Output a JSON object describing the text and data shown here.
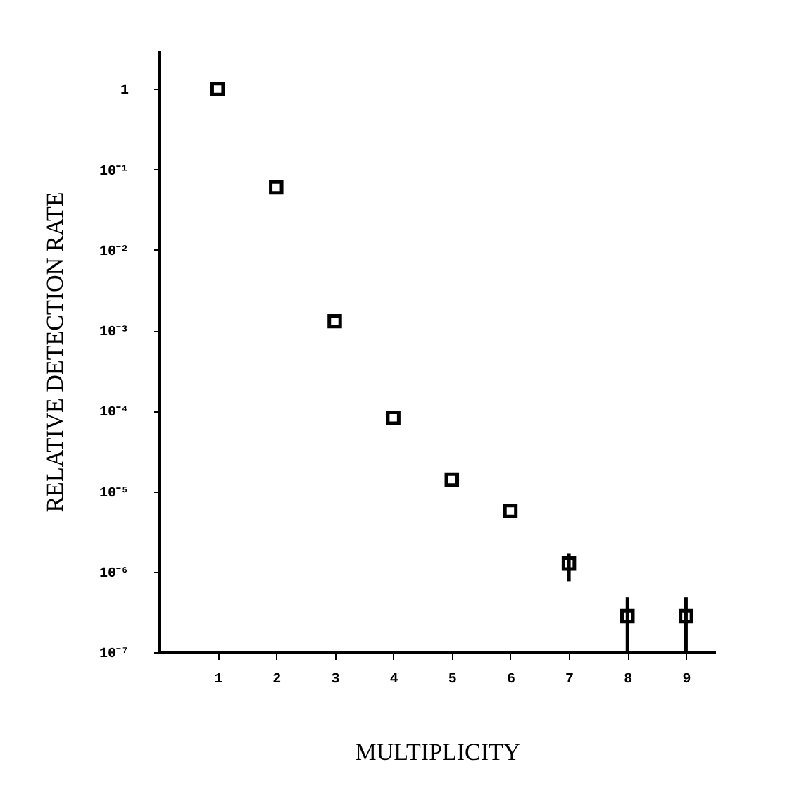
{
  "chart_data": {
    "type": "scatter",
    "xlabel": "MULTIPLICITY",
    "ylabel": "RELATIVE DETECTION RATE",
    "x": [
      1,
      2,
      3,
      4,
      5,
      6,
      7,
      8,
      9
    ],
    "series": [
      {
        "color": "#000000",
        "marker": "square",
        "values": [
          1,
          0.06,
          0.0013,
          8.2e-05,
          1.4e-05,
          5.7e-06,
          1.26e-06,
          2.8e-07,
          2.8e-07
        ],
        "errors": [
          null,
          null,
          null,
          null,
          null,
          null,
          [
            7.6e-07,
            1.7e-06
          ],
          [
            1e-07,
            4.8e-07
          ],
          [
            1e-07,
            4.8e-07
          ]
        ]
      }
    ],
    "log": "y",
    "xlim": [
      0,
      9.5
    ],
    "ylim": [
      1e-07,
      3
    ],
    "xticks": [
      1,
      2,
      3,
      4,
      5,
      6,
      7,
      8,
      9
    ],
    "yticks": [
      {
        "value": 1,
        "label": "1"
      },
      {
        "value": 0.1,
        "label": "10⁻¹"
      },
      {
        "value": 0.01,
        "label": "10⁻²"
      },
      {
        "value": 0.001,
        "label": "10⁻³"
      },
      {
        "value": 0.0001,
        "label": "10⁻⁴"
      },
      {
        "value": 1e-05,
        "label": "10⁻⁵"
      },
      {
        "value": 1e-06,
        "label": "10⁻⁶"
      },
      {
        "value": 1e-07,
        "label": "10⁻⁷"
      }
    ],
    "grid": false
  }
}
